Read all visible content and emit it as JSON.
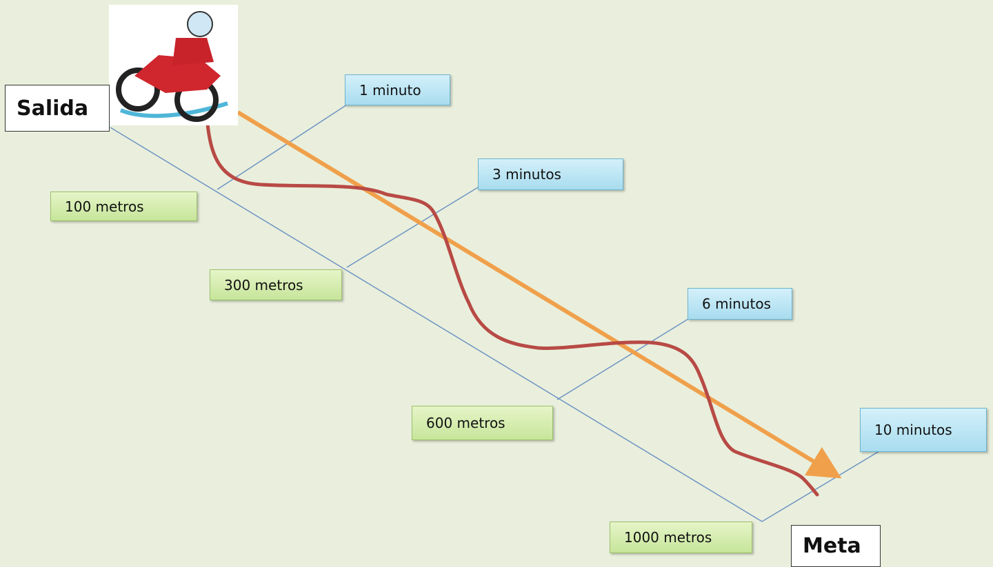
{
  "start": {
    "label": "Salida"
  },
  "end": {
    "label": "Meta"
  },
  "distances": [
    "100 metros",
    "300 metros",
    "600 metros",
    "1000 metros"
  ],
  "times": [
    "1 minuto",
    "3 minutos",
    "6 minutos",
    "10 minutos"
  ]
}
